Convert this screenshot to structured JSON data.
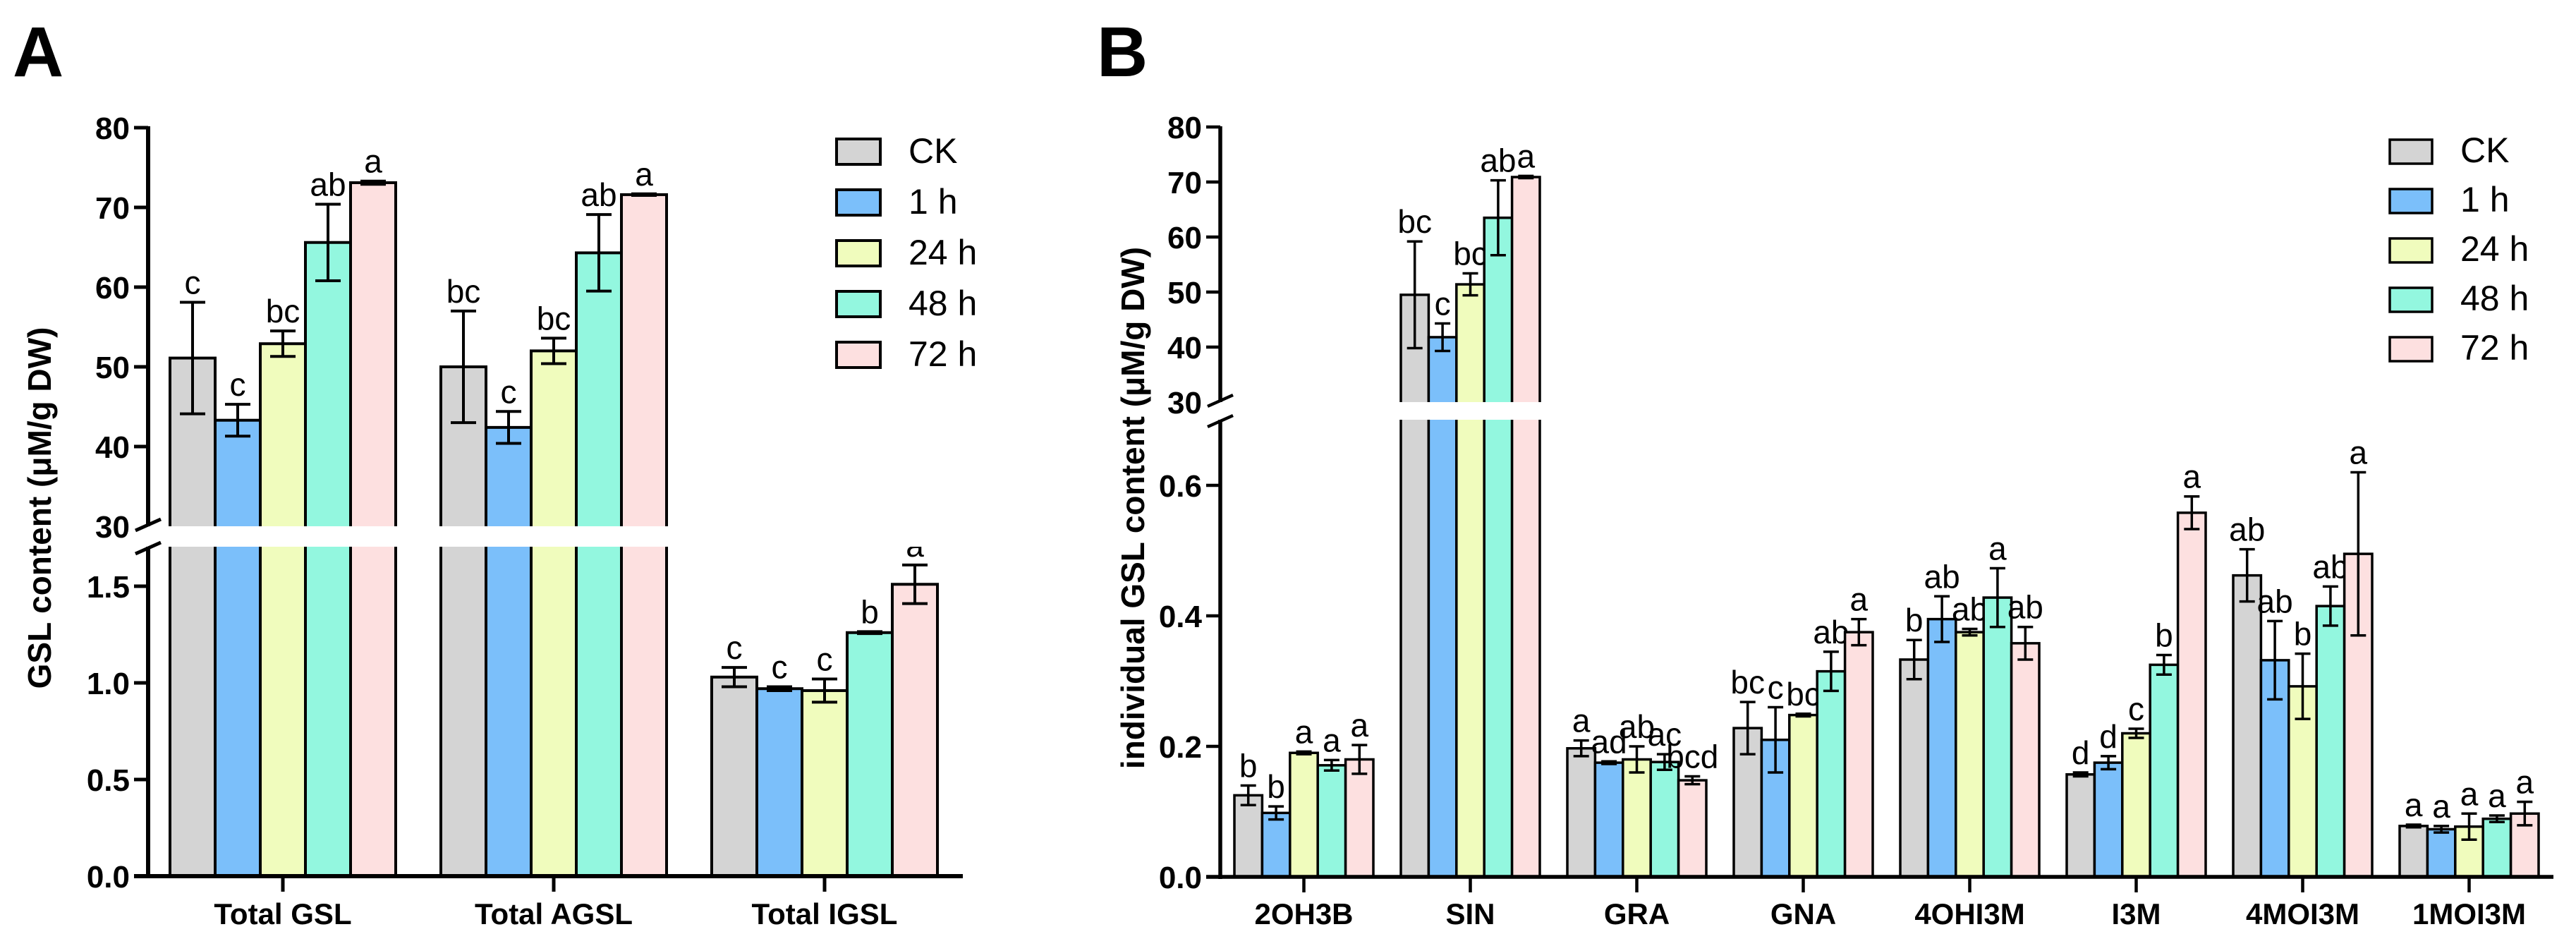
{
  "chart_data": [
    {
      "type": "bar",
      "panel_label": "A",
      "ylabel": "GSL content (μM/g DW)",
      "xlabel": "",
      "axis_break": {
        "lower_range": [
          0,
          1.7
        ],
        "upper_range": [
          30,
          80
        ]
      },
      "yticks_lower": [
        "0.0",
        "0.5",
        "1.0",
        "1.5"
      ],
      "yticks_upper": [
        "30",
        "40",
        "50",
        "60",
        "70",
        "80"
      ],
      "legend_position": "top-right",
      "categories": [
        "Total GSL",
        "Total AGSL",
        "Total IGSL"
      ],
      "series": [
        {
          "name": "CK",
          "color": "#d4d4d4",
          "values": [
            51.1,
            50.0,
            1.03
          ],
          "errors": [
            7.0,
            7.0,
            0.05
          ],
          "letters": [
            "c",
            "bc",
            "c"
          ]
        },
        {
          "name": "1 h",
          "color": "#7bbffa",
          "values": [
            43.3,
            42.4,
            0.97
          ],
          "errors": [
            2.0,
            2.0,
            0.01
          ],
          "letters": [
            "c",
            "c",
            "c"
          ]
        },
        {
          "name": "24 h",
          "color": "#f0fcbd",
          "values": [
            52.9,
            52.0,
            0.96
          ],
          "errors": [
            1.6,
            1.6,
            0.06
          ],
          "letters": [
            "bc",
            "bc",
            "c"
          ]
        },
        {
          "name": "48 h",
          "color": "#93f7df",
          "values": [
            65.6,
            64.3,
            1.26
          ],
          "errors": [
            4.8,
            4.8,
            0.005
          ],
          "letters": [
            "ab",
            "ab",
            "b"
          ]
        },
        {
          "name": "72 h",
          "color": "#fde0e0",
          "values": [
            73.1,
            71.6,
            1.51
          ],
          "errors": [
            0.2,
            0.1,
            0.1
          ],
          "letters": [
            "a",
            "a",
            "a"
          ]
        }
      ]
    },
    {
      "type": "bar",
      "panel_label": "B",
      "ylabel": "individual GSL content (μM/g DW)",
      "xlabel": "",
      "axis_break": {
        "lower_range": [
          0,
          0.7
        ],
        "upper_range": [
          30,
          80
        ]
      },
      "yticks_lower": [
        "0.0",
        "0.2",
        "0.4",
        "0.6"
      ],
      "yticks_upper": [
        "30",
        "40",
        "50",
        "60",
        "70",
        "80"
      ],
      "legend_position": "top-right",
      "categories": [
        "2OH3B",
        "SIN",
        "GRA",
        "GNA",
        "4OHI3M",
        "I3M",
        "4MOI3M",
        "1MOI3M"
      ],
      "series": [
        {
          "name": "CK",
          "color": "#d4d4d4",
          "values": [
            0.125,
            49.5,
            0.197,
            0.228,
            0.333,
            0.157,
            0.462,
            0.078
          ],
          "errors": [
            0.015,
            9.7,
            0.012,
            0.04,
            0.03,
            0.003,
            0.04,
            0.002
          ],
          "letters": [
            "b",
            "bc",
            "a",
            "bc",
            "b",
            "d",
            "ab",
            "a"
          ]
        },
        {
          "name": "1 h",
          "color": "#7bbffa",
          "values": [
            0.098,
            41.8,
            0.175,
            0.21,
            0.395,
            0.175,
            0.332,
            0.073
          ],
          "errors": [
            0.01,
            2.5,
            0.002,
            0.05,
            0.035,
            0.01,
            0.06,
            0.005
          ],
          "letters": [
            "b",
            "c",
            "ad",
            "c",
            "ab",
            "d",
            "ab",
            "a"
          ]
        },
        {
          "name": "24 h",
          "color": "#f0fcbd",
          "values": [
            0.19,
            51.4,
            0.18,
            0.248,
            0.375,
            0.22,
            0.292,
            0.077
          ],
          "errors": [
            0.002,
            2.0,
            0.02,
            0.002,
            0.005,
            0.007,
            0.05,
            0.02
          ],
          "letters": [
            "a",
            "bc",
            "ab",
            "bc",
            "ab",
            "c",
            "b",
            "a"
          ]
        },
        {
          "name": "48 h",
          "color": "#93f7df",
          "values": [
            0.171,
            63.5,
            0.176,
            0.315,
            0.428,
            0.325,
            0.415,
            0.089
          ],
          "errors": [
            0.008,
            6.8,
            0.012,
            0.03,
            0.045,
            0.015,
            0.03,
            0.005
          ],
          "letters": [
            "a",
            "ab",
            "ac",
            "ab",
            "a",
            "b",
            "ab",
            "a"
          ]
        },
        {
          "name": "72 h",
          "color": "#fde0e0",
          "values": [
            0.18,
            70.9,
            0.148,
            0.375,
            0.358,
            0.558,
            0.495,
            0.097
          ],
          "errors": [
            0.022,
            0.2,
            0.006,
            0.02,
            0.025,
            0.025,
            0.125,
            0.018
          ],
          "letters": [
            "a",
            "a",
            "bcd",
            "a",
            "ab",
            "a",
            "a",
            "a"
          ]
        }
      ]
    }
  ]
}
